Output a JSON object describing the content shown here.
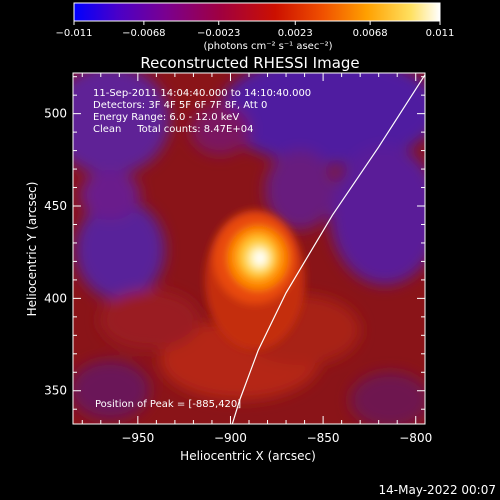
{
  "chart_data": {
    "type": "heatmap",
    "title": "Reconstructed RHESSI Image",
    "xlabel": "Heliocentric X (arcsec)",
    "ylabel": "Heliocentric Y (arcsec)",
    "xlim": [
      -985,
      -795
    ],
    "ylim": [
      332,
      522
    ],
    "x_ticks": [
      -950,
      -900,
      -850,
      -800
    ],
    "x_tick_labels": [
      "−950",
      "−900",
      "−850",
      "−800"
    ],
    "y_ticks": [
      350,
      400,
      450,
      500
    ],
    "y_tick_labels": [
      "350",
      "400",
      "450",
      "500"
    ],
    "colorbar": {
      "min": -0.011,
      "max": 0.011,
      "ticks": [
        -0.011,
        -0.0068,
        -0.0023,
        0.0023,
        0.0068,
        0.011
      ],
      "tick_labels": [
        "−0.011",
        "−0.0068",
        "−0.0023",
        "0.0023",
        "0.0068",
        "0.011"
      ],
      "unit_label": "(photons cm⁻² s⁻¹ asec⁻²)",
      "colormap": [
        "#0000ff",
        "#4a00c8",
        "#7a0090",
        "#a00040",
        "#cc1000",
        "#f05000",
        "#ffa000",
        "#ffe060",
        "#ffffff"
      ]
    },
    "annotations": [
      "11-Sep-2011 14:04:40.000 to 14:10:40.000",
      "Detectors: 3F 4F 5F 6F 7F 8F, Att 0",
      "Energy Range: 6.0 - 12.0 keV",
      "Clean     Total counts: 8.47E+04"
    ],
    "peak_label": "Position of Peak = [-885,420]",
    "peak": {
      "x": -885,
      "y": 420
    },
    "limb_curve": [
      [
        -795,
        521
      ],
      [
        -820,
        482
      ],
      [
        -845,
        445
      ],
      [
        -870,
        403
      ],
      [
        -885,
        372
      ],
      [
        -895,
        345
      ],
      [
        -899,
        332
      ]
    ],
    "grid": false,
    "legend": "none"
  },
  "timestamp": "14-May-2022 00:07"
}
